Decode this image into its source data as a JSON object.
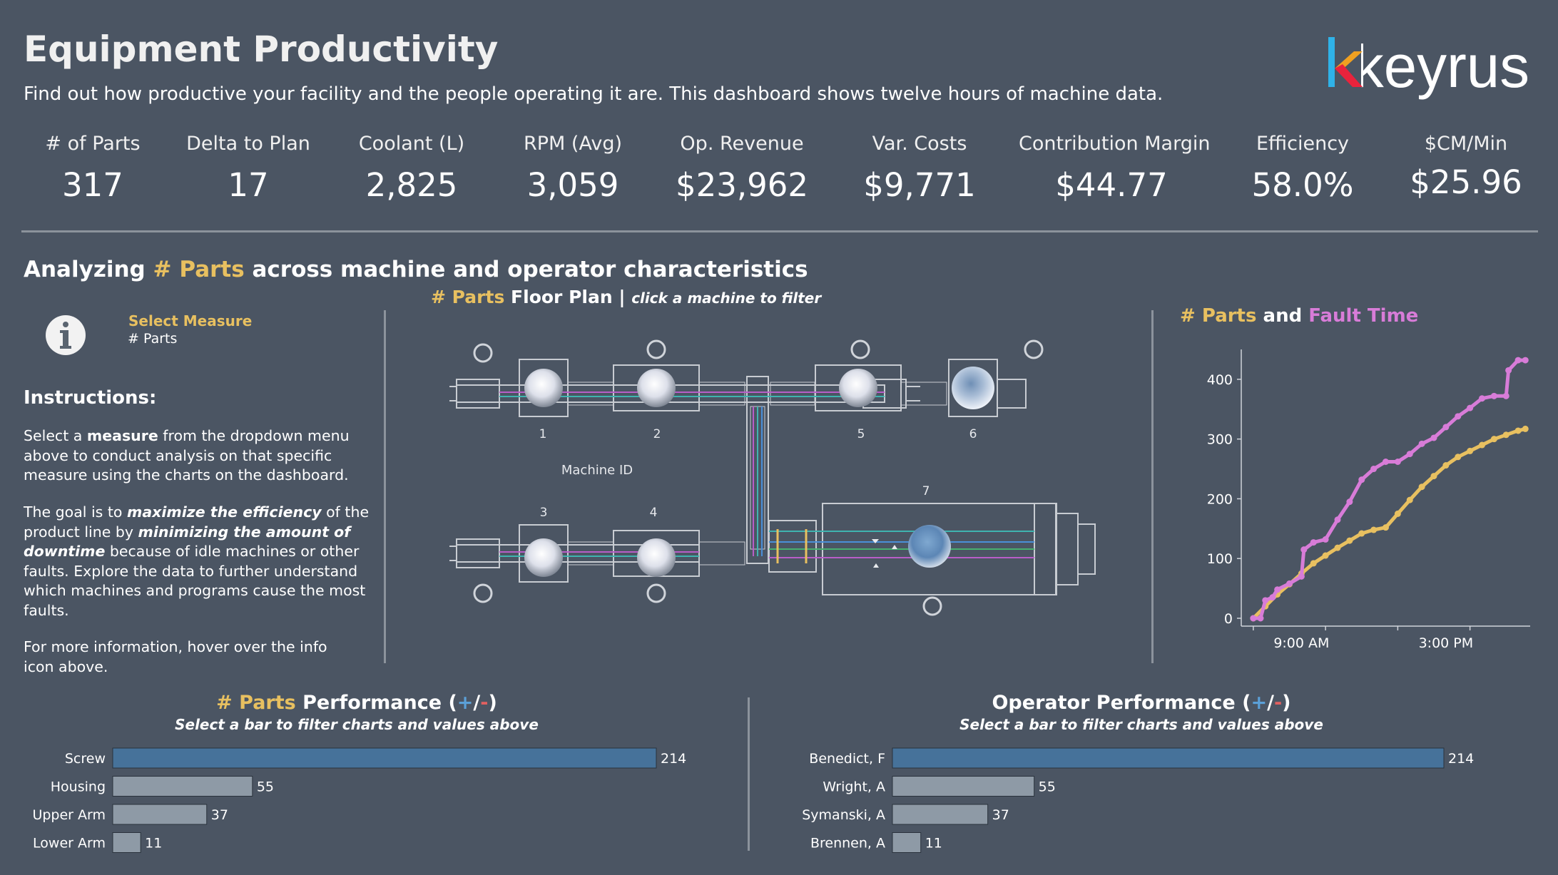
{
  "header": {
    "title": "Equipment Productivity",
    "subtitle": "Find out how productive your facility and the people operating it are. This dashboard shows twelve hours of machine data.",
    "logo_text": "keyrus"
  },
  "kpis": [
    {
      "label": "# of Parts",
      "value": "317"
    },
    {
      "label": "Delta to Plan",
      "value": "17"
    },
    {
      "label": "Coolant (L)",
      "value": "2,825"
    },
    {
      "label": "RPM (Avg)",
      "value": "3,059"
    },
    {
      "label": "Op. Revenue",
      "value": "$23,962"
    },
    {
      "label": "Var. Costs",
      "value": "$9,771"
    },
    {
      "label": "Contribution Margin",
      "value": "$44.77"
    },
    {
      "label": "Efficiency",
      "value": "58.0%"
    },
    {
      "label": "$CM/Min",
      "value": "$25.96"
    }
  ],
  "analysis": {
    "prefix": "Analyzing ",
    "measure": "# Parts",
    "suffix": " across machine and operator characteristics"
  },
  "selector": {
    "label": "Select Measure",
    "value": "# Parts",
    "icon": "info-icon"
  },
  "instructions": {
    "title": "Instructions:",
    "p1": [
      "Select a ",
      "measure",
      " from the dropdown menu above to conduct analysis on that specific measure using the charts on the dashboard."
    ],
    "p2": [
      "The goal is to ",
      "maximize the efficiency",
      " of the product line by ",
      "minimizing the amount of downtime",
      " because of idle machines or other faults. Explore the data to further understand which machines and programs cause the most faults."
    ],
    "p3": "For more information, hover over the info icon above."
  },
  "floor_plan": {
    "measure": "# Parts",
    "title": " Floor Plan",
    "separator": " | ",
    "note": "click a machine to filter",
    "axis_label": "Machine ID",
    "machines": [
      "1",
      "2",
      "5",
      "6",
      "3",
      "4",
      "7"
    ]
  },
  "line_chart_heading": {
    "measure": "# Parts",
    "and": " and ",
    "fault": "Fault Time"
  },
  "parts_performance": {
    "measure": "# Parts",
    "title": " Performance (",
    "plus": "+",
    "slash": "/",
    "minus": "-",
    "close": ")",
    "subtitle": "Select a bar to filter charts and values above"
  },
  "operator_performance": {
    "title": "Operator Performance (",
    "plus": "+",
    "slash": "/",
    "minus": "-",
    "close": ")",
    "subtitle": "Select a bar to filter charts and values above"
  },
  "colors": {
    "background": "#4b5563",
    "gold": "#e8c060",
    "pink": "#d87cd8",
    "bar_selected": "#46729a",
    "bar_other": "#8e9aa6",
    "divider": "#8c939c"
  },
  "chart_data": [
    {
      "type": "line",
      "xlabel": "",
      "ylabel": "",
      "ylim": [
        0,
        450
      ],
      "y_ticks": [
        0,
        100,
        200,
        300,
        400
      ],
      "x_tick_labels": [
        "9:00 AM",
        "3:00 PM"
      ],
      "x_hours": [
        6.5,
        18.5
      ],
      "grid": false,
      "series": [
        {
          "name": "# Parts",
          "color": "#e8c060",
          "x": [
            7.0,
            7.5,
            8.0,
            8.5,
            9.0,
            9.5,
            10.0,
            10.5,
            11.0,
            11.5,
            12.0,
            12.5,
            13.0,
            13.5,
            14.0,
            14.5,
            15.0,
            15.5,
            16.0,
            16.5,
            17.0,
            17.5,
            18.0,
            18.3
          ],
          "y": [
            0,
            20,
            40,
            57,
            75,
            92,
            105,
            118,
            130,
            142,
            148,
            152,
            175,
            198,
            220,
            238,
            256,
            270,
            280,
            290,
            300,
            307,
            314,
            317
          ]
        },
        {
          "name": "Fault Time",
          "color": "#d87cd8",
          "x": [
            7.0,
            7.3,
            7.5,
            7.8,
            8.0,
            8.5,
            9.0,
            9.1,
            9.5,
            10.0,
            10.5,
            11.0,
            11.5,
            12.0,
            12.5,
            13.0,
            13.5,
            14.0,
            14.5,
            15.0,
            15.5,
            16.0,
            16.5,
            17.0,
            17.5,
            17.6,
            18.0,
            18.3
          ],
          "y": [
            0,
            0,
            30,
            35,
            48,
            58,
            70,
            115,
            127,
            132,
            165,
            195,
            232,
            250,
            262,
            262,
            275,
            292,
            302,
            320,
            338,
            352,
            368,
            372,
            372,
            415,
            432,
            432
          ]
        }
      ]
    },
    {
      "type": "bar",
      "title": "# Parts Performance (+/-)",
      "categories": [
        "Screw",
        "Housing",
        "Upper Arm",
        "Lower Arm"
      ],
      "values": [
        214,
        55,
        37,
        11
      ],
      "xlim": [
        0,
        214
      ]
    },
    {
      "type": "bar",
      "title": "Operator Performance (+/-)",
      "categories": [
        "Benedict, F",
        "Wright, A",
        "Symanski, A",
        "Brennen, A"
      ],
      "values": [
        214,
        55,
        37,
        11
      ],
      "xlim": [
        0,
        214
      ]
    }
  ]
}
